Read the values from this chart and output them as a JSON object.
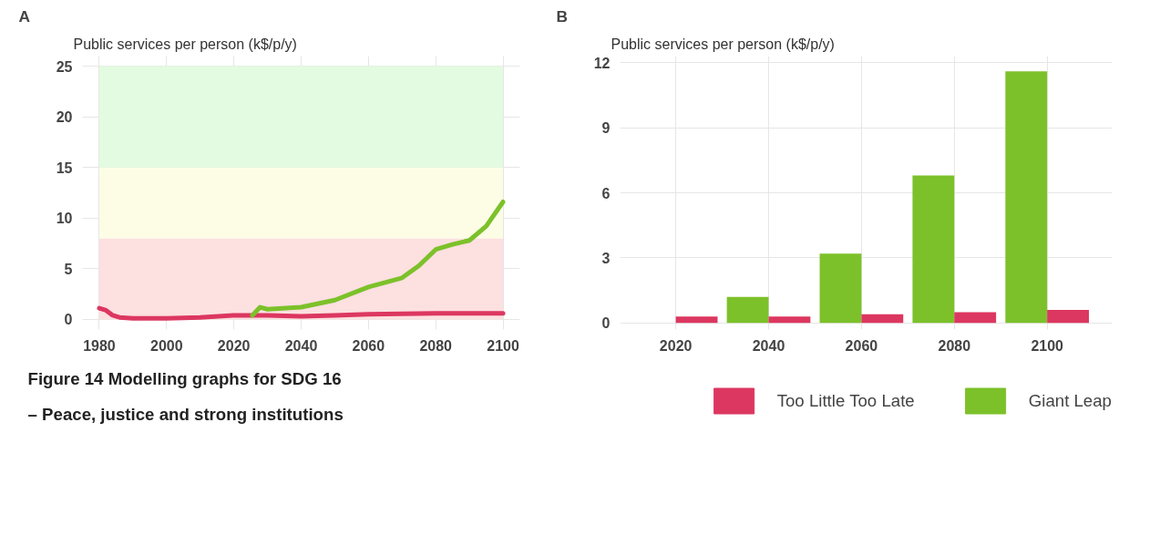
{
  "chart_data": [
    {
      "type": "line",
      "title": "A",
      "ylabel": "Public services per person (k$/p/y)",
      "xlim": [
        1975,
        2105
      ],
      "xticks": [
        1980,
        2000,
        2020,
        2040,
        2060,
        2080,
        2100
      ],
      "ylim": [
        -1,
        26
      ],
      "yticks": [
        0,
        5,
        10,
        15,
        20,
        25
      ],
      "grid": true,
      "bands": [
        {
          "axis": "y",
          "from": 0,
          "to": 8,
          "label": null,
          "color": "#fde0e0"
        },
        {
          "axis": "y",
          "from": 8,
          "to": 15,
          "label": null,
          "color": "#fdfde6"
        },
        {
          "axis": "y",
          "from": 15,
          "to": 25,
          "label": null,
          "color": "#e3fbe0"
        }
      ],
      "series": [
        {
          "color": "#dc3760",
          "x": [
            1980,
            1982,
            1984,
            1986,
            1990,
            2000,
            2010,
            2020,
            2030,
            2040,
            2050,
            2060,
            2080,
            2100
          ],
          "values": [
            1.1,
            0.9,
            0.4,
            0.2,
            0.1,
            0.1,
            0.2,
            0.4,
            0.4,
            0.3,
            0.4,
            0.5,
            0.6,
            0.6
          ]
        },
        {
          "color": "#7cc12a",
          "x": [
            2025.5,
            2027.8,
            2030,
            2040,
            2050,
            2060,
            2070,
            2075,
            2080,
            2085,
            2090,
            2095,
            2100
          ],
          "values": [
            0.4,
            1.2,
            1.0,
            1.2,
            1.9,
            3.2,
            4.1,
            5.3,
            6.9,
            7.4,
            7.8,
            9.2,
            11.6
          ]
        }
      ],
      "annotations": [
        "Figure 14 Modelling graphs for SDG 16",
        "– Peace, justice and strong institutions"
      ]
    },
    {
      "type": "bar",
      "title": "B",
      "ylabel": "Public services per person (k$/p/y)",
      "categories": [
        "2020",
        "2040",
        "2060",
        "2080",
        "2100"
      ],
      "ylim": [
        -0.3,
        12.3
      ],
      "yticks": [
        0,
        3,
        6,
        9,
        12
      ],
      "grid": true,
      "legend": "bottom right",
      "series": [
        {
          "name": "Giant Leap",
          "color": "#7cc12a",
          "values": [
            null,
            1.2,
            3.2,
            6.8,
            11.6
          ]
        },
        {
          "name": "Too Little Too Late",
          "color": "#dc3760",
          "values": [
            0.3,
            0.3,
            0.4,
            0.5,
            0.6
          ]
        }
      ]
    }
  ]
}
